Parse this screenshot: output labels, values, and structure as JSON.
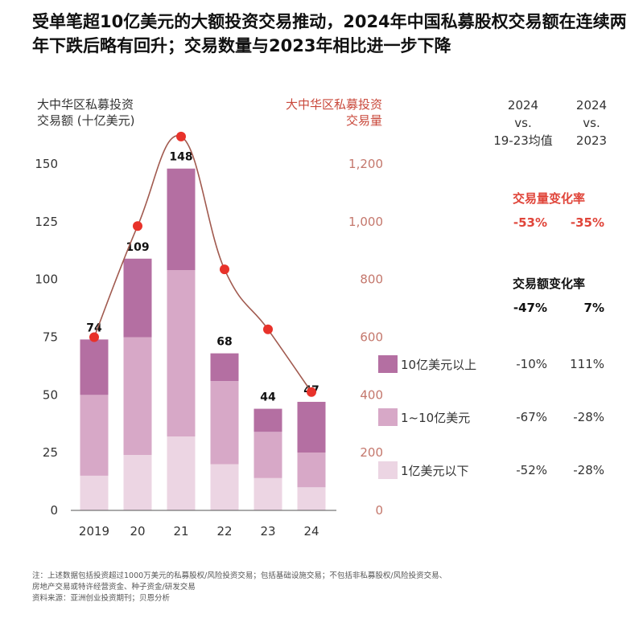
{
  "title": "受单笔超10亿美元的大额投资交易推动，2024年中国私募股权交易额在连续两年下跌后略有回升；交易数量与2023年相比进一步下降",
  "colors": {
    "above_1b": "#b46fa2",
    "between_100m_1b": "#d7a8c7",
    "below_100m": "#ecd5e3",
    "line": "#a15a4f",
    "marker": "#e8322a",
    "right_axis": "#c4776c",
    "volume_header": "#e0453a"
  },
  "chart_data": {
    "type": "bar",
    "title": "受单笔超10亿美元的大额投资交易推动，2024年中国私募股权交易额在连续两年下跌后略有回升；交易数量与2023年相比进一步下降",
    "categories": [
      "2019",
      "20",
      "21",
      "22",
      "23",
      "24"
    ],
    "ylabel": "大中华区私募投资交易额 (十亿美元)",
    "ylabel_lines": [
      "大中华区私募投资",
      "交易额 (十亿美元)"
    ],
    "y2label": "大中华区私募投资交易量",
    "y2label_lines": [
      "大中华区私募投资",
      "交易量"
    ],
    "ylim": [
      0,
      150
    ],
    "y2lim": [
      0,
      1200
    ],
    "yticks": [
      "0",
      "25",
      "50",
      "75",
      "100",
      "125",
      "150"
    ],
    "y2ticks": [
      "0",
      "200",
      "400",
      "600",
      "800",
      "1,000",
      "1,200"
    ],
    "series": [
      {
        "name": "1亿美元以下",
        "type": "bar",
        "values": [
          15,
          24,
          32,
          20,
          14,
          10
        ]
      },
      {
        "name": "1~10亿美元",
        "type": "bar",
        "values": [
          35,
          51,
          72,
          36,
          20,
          15
        ]
      },
      {
        "name": "10亿美元以上",
        "type": "bar",
        "values": [
          24,
          34,
          44,
          12,
          10,
          22
        ]
      },
      {
        "name": "交易量",
        "type": "line",
        "axis": "right",
        "values": [
          600,
          985,
          1295,
          835,
          627,
          410
        ]
      }
    ],
    "totals": [
      "74",
      "109",
      "148",
      "68",
      "44",
      "47"
    ],
    "grid": false,
    "legend": "right"
  },
  "side_table": {
    "col1_header": [
      "2024",
      "vs.",
      "19-23均值"
    ],
    "col2_header": [
      "2024",
      "vs.",
      "2023"
    ],
    "volume_title": "交易量变化率",
    "volume_values": [
      "-53%",
      "-35%"
    ],
    "value_title": "交易额变化率",
    "value_values": [
      "-47%",
      "7%"
    ],
    "legend": [
      {
        "label": "10亿美元以上",
        "v1": "-10%",
        "v2": "111%"
      },
      {
        "label": "1~10亿美元",
        "v1": "-67%",
        "v2": "-28%"
      },
      {
        "label": "1亿美元以下",
        "v1": "-52%",
        "v2": "-28%"
      }
    ]
  },
  "notes": [
    "注：上述数据包括投资超过1000万美元的私募股权/风险投资交易；包括基础设施交易；不包括非私募股权/风险投资交易、",
    "房地产交易或特许经营资金、种子资金/研发交易",
    "资料来源：亚洲创业投资期刊；贝恩分析"
  ]
}
